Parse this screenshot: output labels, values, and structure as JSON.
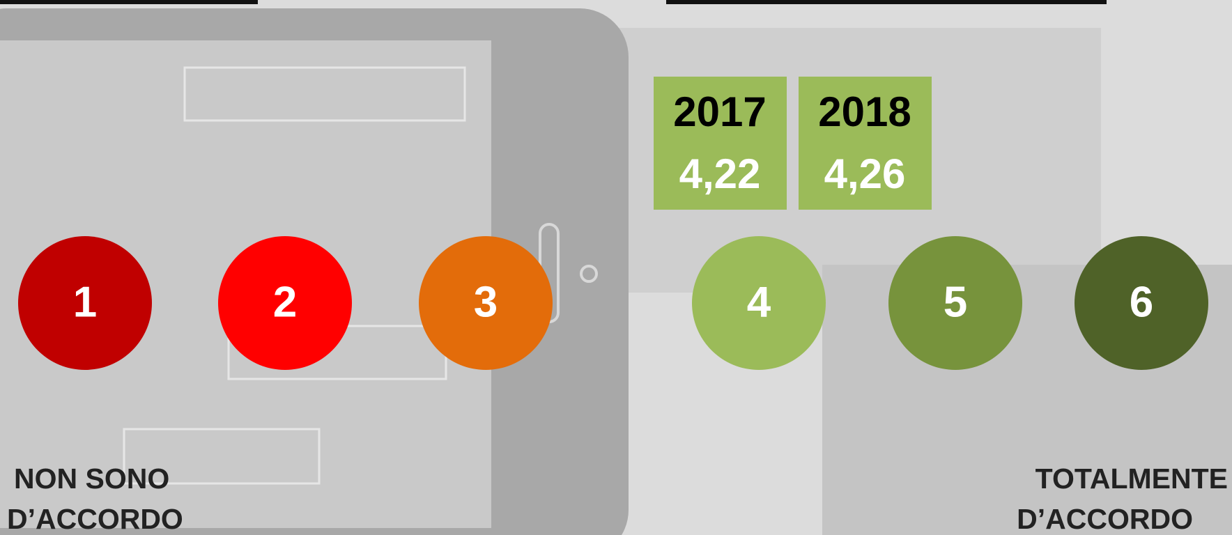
{
  "scale": [
    {
      "label": "1",
      "color": "#c00000"
    },
    {
      "label": "2",
      "color": "#ff0000"
    },
    {
      "label": "3",
      "color": "#e36c0a"
    },
    {
      "label": "4",
      "color": "#9bbb59"
    },
    {
      "label": "5",
      "color": "#77933c"
    },
    {
      "label": "6",
      "color": "#4f6228"
    }
  ],
  "scores": [
    {
      "year": "2017",
      "value": "4,22"
    },
    {
      "year": "2018",
      "value": "4,26"
    }
  ],
  "left_label": [
    "NON SONO",
    "D’ACCORDO"
  ],
  "right_label": [
    "TOTALMENTE",
    "D’ACCORDO"
  ]
}
